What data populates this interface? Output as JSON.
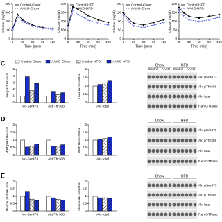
{
  "chart_data": [
    {
      "type": "line",
      "ylabel": "Glucose (mg/dl)",
      "xlabel": "Time (min)",
      "x": [
        0,
        15,
        30,
        60,
        90,
        120
      ],
      "xlim": [
        0,
        120
      ],
      "xticks": [
        0,
        30,
        60,
        90,
        120
      ],
      "ylim": [
        0,
        400
      ],
      "yticks": [
        0,
        100,
        200,
        300,
        400
      ],
      "series": [
        {
          "name": "Control-Chow",
          "color": "#000000",
          "dash": false,
          "values": [
            110,
            280,
            220,
            160,
            130,
            120
          ]
        },
        {
          "name": "AAKO-Chow",
          "color": "#1a2fd0",
          "dash": true,
          "values": [
            105,
            250,
            200,
            150,
            120,
            110
          ]
        }
      ]
    },
    {
      "type": "line",
      "ylabel": "Glucose (mg/dl)",
      "xlabel": "Time (min)",
      "x": [
        0,
        15,
        30,
        60,
        90,
        120
      ],
      "xlim": [
        0,
        120
      ],
      "xticks": [
        0,
        30,
        60,
        90,
        120
      ],
      "ylim": [
        0,
        400
      ],
      "yticks": [
        0,
        100,
        200,
        300,
        400
      ],
      "series": [
        {
          "name": "Control-HFD",
          "color": "#000000",
          "dash": false,
          "values": [
            150,
            370,
            340,
            270,
            220,
            190
          ]
        },
        {
          "name": "AAKO-HFD",
          "color": "#1a2fd0",
          "dash": true,
          "values": [
            135,
            320,
            280,
            220,
            180,
            160
          ]
        }
      ]
    },
    {
      "type": "line",
      "ylabel": "Glucose (mg/dl)",
      "xlabel": "Time (min)",
      "x": [
        0,
        15,
        30,
        60,
        90,
        120
      ],
      "xlim": [
        0,
        120
      ],
      "xticks": [
        0,
        30,
        60,
        90,
        120
      ],
      "ylim": [
        0,
        200
      ],
      "yticks": [
        0,
        50,
        100,
        150,
        200
      ],
      "series": [
        {
          "name": "Control-Chow",
          "color": "#000000",
          "dash": false,
          "values": [
            150,
            115,
            90,
            80,
            95,
            110
          ]
        },
        {
          "name": "AAKO-Chow",
          "color": "#1a2fd0",
          "dash": true,
          "values": [
            140,
            100,
            75,
            65,
            80,
            95
          ]
        }
      ]
    },
    {
      "type": "line",
      "ylabel": "Glucose (mg/dl)",
      "xlabel": "Time (min)",
      "x": [
        0,
        15,
        30,
        60,
        90,
        120
      ],
      "xlim": [
        0,
        120
      ],
      "xticks": [
        0,
        30,
        60,
        90,
        120
      ],
      "ylim": [
        0,
        200
      ],
      "yticks": [
        0,
        50,
        100,
        150,
        200
      ],
      "series": [
        {
          "name": "Control-HFD",
          "color": "#000000",
          "dash": false,
          "values": [
            180,
            150,
            130,
            120,
            130,
            140
          ]
        },
        {
          "name": "AAKO-HFD",
          "color": "#1a2fd0",
          "dash": true,
          "values": [
            165,
            130,
            110,
            100,
            110,
            125
          ]
        }
      ]
    },
    {
      "type": "bar",
      "panel": "C",
      "ylabel": "Liver pAkt/Akt-total",
      "categories": [
        "Akt-Ser473",
        "Akt-Thr308"
      ],
      "ylim": [
        0,
        5
      ],
      "yticks": [
        0,
        1,
        2,
        3,
        4,
        5
      ],
      "series": [
        {
          "name": "Control-Chow",
          "color": "#ffffff",
          "hatch": false,
          "values": [
            1,
            1
          ]
        },
        {
          "name": "AAKO-Chow",
          "color": "#1a2fd0",
          "hatch": false,
          "values": [
            3.9,
            1.7
          ]
        },
        {
          "name": "Control-HFD",
          "color": "#ffffff",
          "hatch": true,
          "values": [
            1.8,
            1.2
          ]
        },
        {
          "name": "AAKO-HFD",
          "color": "#1a2fd0",
          "hatch": true,
          "values": [
            2.9,
            1.5
          ]
        }
      ]
    },
    {
      "type": "bar",
      "ylabel": "Liver Akt-total/Ran",
      "categories": [
        "Akt-total"
      ],
      "ylim": [
        0,
        2
      ],
      "yticks": [
        0,
        0.5,
        1,
        1.5,
        2
      ],
      "series": [
        {
          "name": "Control-Chow",
          "color": "#ffffff",
          "hatch": false,
          "values": [
            1
          ]
        },
        {
          "name": "AAKO-Chow",
          "color": "#1a2fd0",
          "hatch": false,
          "values": [
            1.1
          ]
        },
        {
          "name": "Control-HFD",
          "color": "#ffffff",
          "hatch": true,
          "values": [
            1.2
          ]
        },
        {
          "name": "AAKO-HFD",
          "color": "#1a2fd0",
          "hatch": true,
          "values": [
            1.3
          ]
        }
      ]
    },
    {
      "type": "bar",
      "panel": "D",
      "ylabel": "WAT pAkt/Akt-total",
      "categories": [
        "Akt-Ser473",
        "Akt-Thr308"
      ],
      "ylim": [
        0,
        2
      ],
      "yticks": [
        0,
        0.5,
        1,
        1.5,
        2
      ],
      "series": [
        {
          "name": "Control-Chow",
          "color": "#ffffff",
          "hatch": false,
          "values": [
            1,
            1
          ]
        },
        {
          "name": "AAKO-Chow",
          "color": "#1a2fd0",
          "hatch": false,
          "values": [
            0.55,
            0.6
          ]
        },
        {
          "name": "Control-HFD",
          "color": "#ffffff",
          "hatch": true,
          "values": [
            0.6,
            0.6
          ]
        },
        {
          "name": "AAKO-HFD",
          "color": "#1a2fd0",
          "hatch": true,
          "values": [
            0.75,
            0.7
          ]
        }
      ]
    },
    {
      "type": "bar",
      "ylabel": "WAT Akt-total/Ran",
      "categories": [
        "Akt-total"
      ],
      "ylim": [
        0,
        2
      ],
      "yticks": [
        0,
        0.5,
        1,
        1.5,
        2
      ],
      "series": [
        {
          "name": "Control-Chow",
          "color": "#ffffff",
          "hatch": false,
          "values": [
            1
          ]
        },
        {
          "name": "AAKO-Chow",
          "color": "#1a2fd0",
          "hatch": false,
          "values": [
            1.05
          ]
        },
        {
          "name": "Control-HFD",
          "color": "#ffffff",
          "hatch": true,
          "values": [
            1.1
          ]
        },
        {
          "name": "AAKO-HFD",
          "color": "#1a2fd0",
          "hatch": true,
          "values": [
            1.2
          ]
        }
      ]
    },
    {
      "type": "bar",
      "panel": "E",
      "ylabel": "Muscle pAkt/Akt-total",
      "categories": [
        "Akt-Ser473",
        "Akt-Thr308"
      ],
      "ylim": [
        0,
        2
      ],
      "yticks": [
        0,
        0.5,
        1,
        1.5,
        2
      ],
      "series": [
        {
          "name": "Control-Chow",
          "color": "#ffffff",
          "hatch": false,
          "values": [
            1,
            1
          ]
        },
        {
          "name": "AAKO-Chow",
          "color": "#1a2fd0",
          "hatch": false,
          "values": [
            1.3,
            0.9
          ]
        },
        {
          "name": "Control-HFD",
          "color": "#ffffff",
          "hatch": true,
          "values": [
            0.8,
            0.8
          ]
        },
        {
          "name": "AAKO-HFD",
          "color": "#1a2fd0",
          "hatch": true,
          "values": [
            0.7,
            0.75
          ]
        }
      ]
    },
    {
      "type": "bar",
      "ylabel": "Muscle Akt-total/Ran",
      "categories": [
        "Akt-total"
      ],
      "ylim": [
        0,
        2
      ],
      "yticks": [
        0,
        0.5,
        1,
        1.5,
        2
      ],
      "series": [
        {
          "name": "Control-Chow",
          "color": "#ffffff",
          "hatch": false,
          "values": [
            1
          ]
        },
        {
          "name": "AAKO-Chow",
          "color": "#1a2fd0",
          "hatch": false,
          "values": [
            0.9
          ]
        },
        {
          "name": "Control-HFD",
          "color": "#ffffff",
          "hatch": true,
          "values": [
            0.9
          ]
        },
        {
          "name": "AAKO-HFD",
          "color": "#1a2fd0",
          "hatch": true,
          "values": [
            0.85
          ]
        }
      ]
    }
  ],
  "blots": [
    {
      "groups": [
        "Chow",
        "HFD"
      ],
      "lanes": [
        "Control",
        "AAKO",
        "Control",
        "AAKO"
      ],
      "rows": [
        "Akt pSer473",
        "Akt pThr308",
        "Akt total",
        "Ran GTPase"
      ]
    },
    {
      "groups": [
        "Chow",
        "HFD"
      ],
      "rows": [
        "Akt pSer473",
        "Akt pThr308",
        "Akt total",
        "Ran GTPase"
      ]
    },
    {
      "groups": [
        "Chow",
        "HFD"
      ],
      "rows": [
        "Akt pSer473",
        "Akt pThr308",
        "Akt total",
        "Ran GTPase"
      ]
    }
  ]
}
